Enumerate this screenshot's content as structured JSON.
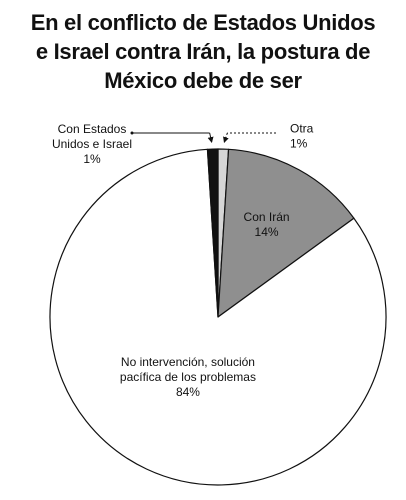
{
  "title_lines": [
    "En el conflicto de Estados Unidos",
    "e Israel contra Irán, la postura de",
    "México debe de ser"
  ],
  "chart_data": {
    "type": "pie",
    "title": "En el conflicto de Estados Unidos e Israel contra Irán, la postura de México debe de ser",
    "unit": "%",
    "slices": [
      {
        "label_lines": [
          "Otra"
        ],
        "value": 1,
        "value_label": "1%",
        "color": "#d6d6d6",
        "label_position": "outside-right",
        "leader": "dotted"
      },
      {
        "label_lines": [
          "Con Irán"
        ],
        "value": 14,
        "value_label": "14%",
        "color": "#8f8f8f",
        "label_position": "inside",
        "label_color": "#ffffff"
      },
      {
        "label_lines": [
          "No intervención, solución",
          "pacífica de los problemas"
        ],
        "value": 84,
        "value_label": "84%",
        "color": "#ffffff",
        "label_position": "inside",
        "label_color": "#111111"
      },
      {
        "label_lines": [
          "Con Estados",
          "Unidos e Israel"
        ],
        "value": 1,
        "value_label": "1%",
        "color": "#111111",
        "label_position": "outside-left",
        "leader": "solid"
      }
    ]
  }
}
